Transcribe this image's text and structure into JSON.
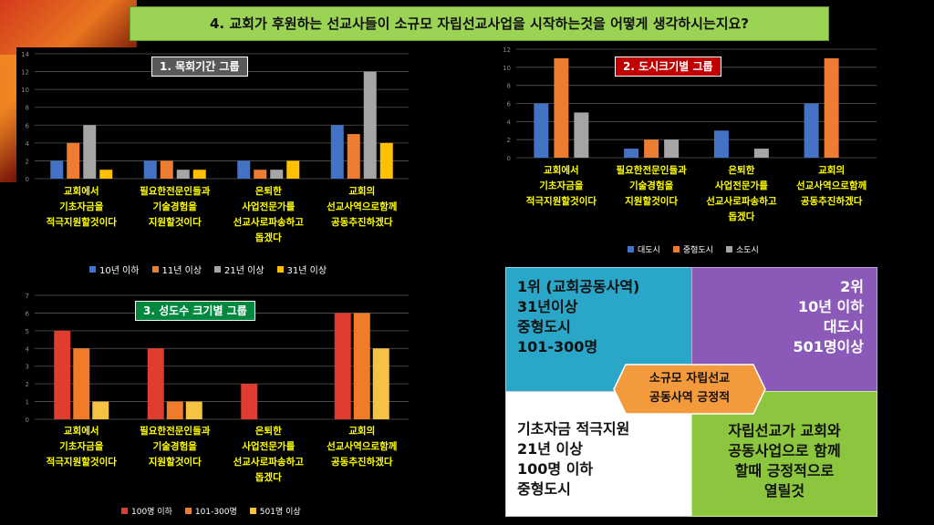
{
  "title": "4. 교회가 후원하는 선교사들이 소규모 자립선교사업을 시작하는것을 어떻게 생각하시는지요?",
  "chart_data": [
    {
      "type": "bar",
      "title": "1. 목회기간 그룹",
      "categories": [
        "교회에서\n기초자금을\n적극지원할것이다",
        "필요한전문인들과\n기술경험을\n지원할것이다",
        "은퇴한\n사업전문가를\n선교사로파송하고\n돕겠다",
        "교회의\n선교사역으로함께\n공동추진하겠다"
      ],
      "series": [
        {
          "name": "10년 이하",
          "color": "#4472c4",
          "values": [
            2,
            2,
            2,
            6
          ]
        },
        {
          "name": "11년 이상",
          "color": "#ed7d31",
          "values": [
            4,
            2,
            1,
            5
          ]
        },
        {
          "name": "21년 이상",
          "color": "#a5a5a5",
          "values": [
            6,
            1,
            1,
            12
          ]
        },
        {
          "name": "31년 이상",
          "color": "#ffc000",
          "values": [
            1,
            1,
            2,
            4
          ]
        }
      ],
      "ylim": [
        0,
        14
      ],
      "yticks": [
        0,
        2,
        4,
        6,
        8,
        10,
        12,
        14
      ],
      "legend": "bottom",
      "grid": true
    },
    {
      "type": "bar",
      "title": "2. 도시크기별 그룹",
      "categories": [
        "교회에서\n기초자금을\n적극지원할것이다",
        "필요한전문인들과\n기술경험을\n지원할것이다",
        "은퇴한\n사업전문가를\n선교사로파송하고\n돕겠다",
        "교회의\n선교사역으로함께\n공동추진하겠다"
      ],
      "series": [
        {
          "name": "대도시",
          "color": "#4472c4",
          "values": [
            6,
            1,
            3,
            6
          ]
        },
        {
          "name": "중형도시",
          "color": "#ed7d31",
          "values": [
            11,
            2,
            0,
            11
          ]
        },
        {
          "name": "소도시",
          "color": "#a5a5a5",
          "values": [
            5,
            2,
            1,
            0
          ]
        }
      ],
      "ylim": [
        0,
        12
      ],
      "yticks": [
        0,
        2,
        4,
        6,
        8,
        10,
        12
      ],
      "legend": "bottom",
      "grid": true
    },
    {
      "type": "bar",
      "title": "3. 성도수 크기별 그룹",
      "categories": [
        "교회에서\n기초자금을\n적극지원할것이다",
        "필요한전문인들과\n기술경험을\n지원할것이다",
        "은퇴한\n사업전문가를\n선교사로파송하고\n돕겠다",
        "교회의\n선교사역으로함께\n공동추진하겠다"
      ],
      "series": [
        {
          "name": "100명 이하",
          "color": "#e03c31",
          "values": [
            5,
            4,
            2,
            6
          ]
        },
        {
          "name": "101-300명",
          "color": "#f07c2a",
          "values": [
            4,
            1,
            0,
            6
          ]
        },
        {
          "name": "501명 이상",
          "color": "#f5c243",
          "values": [
            1,
            1,
            0,
            4
          ]
        }
      ],
      "ylim": [
        0,
        7
      ],
      "yticks": [
        0,
        1,
        2,
        3,
        4,
        5,
        6,
        7
      ],
      "legend": "bottom",
      "grid": true
    }
  ],
  "summary": {
    "q1": "1위 (교회공동사역)\n31년이상\n중형도시\n101-300명",
    "q2": "2위\n10년 이하\n대도시\n501명이상",
    "q3": "기초자금 적극지원\n21년 이상\n100명 이하\n중형도시",
    "q4": "자립선교가 교회와\n공동사업으로 함께\n할때 긍정적으로\n열릴것",
    "center": "소규모 자립선교\n공동사역 긍정적",
    "colors": {
      "q1": "#2aa6c8",
      "q2": "#8b59b8",
      "q3": "#ffffff",
      "q4": "#8cc63f",
      "center": "#f39a3c"
    }
  }
}
